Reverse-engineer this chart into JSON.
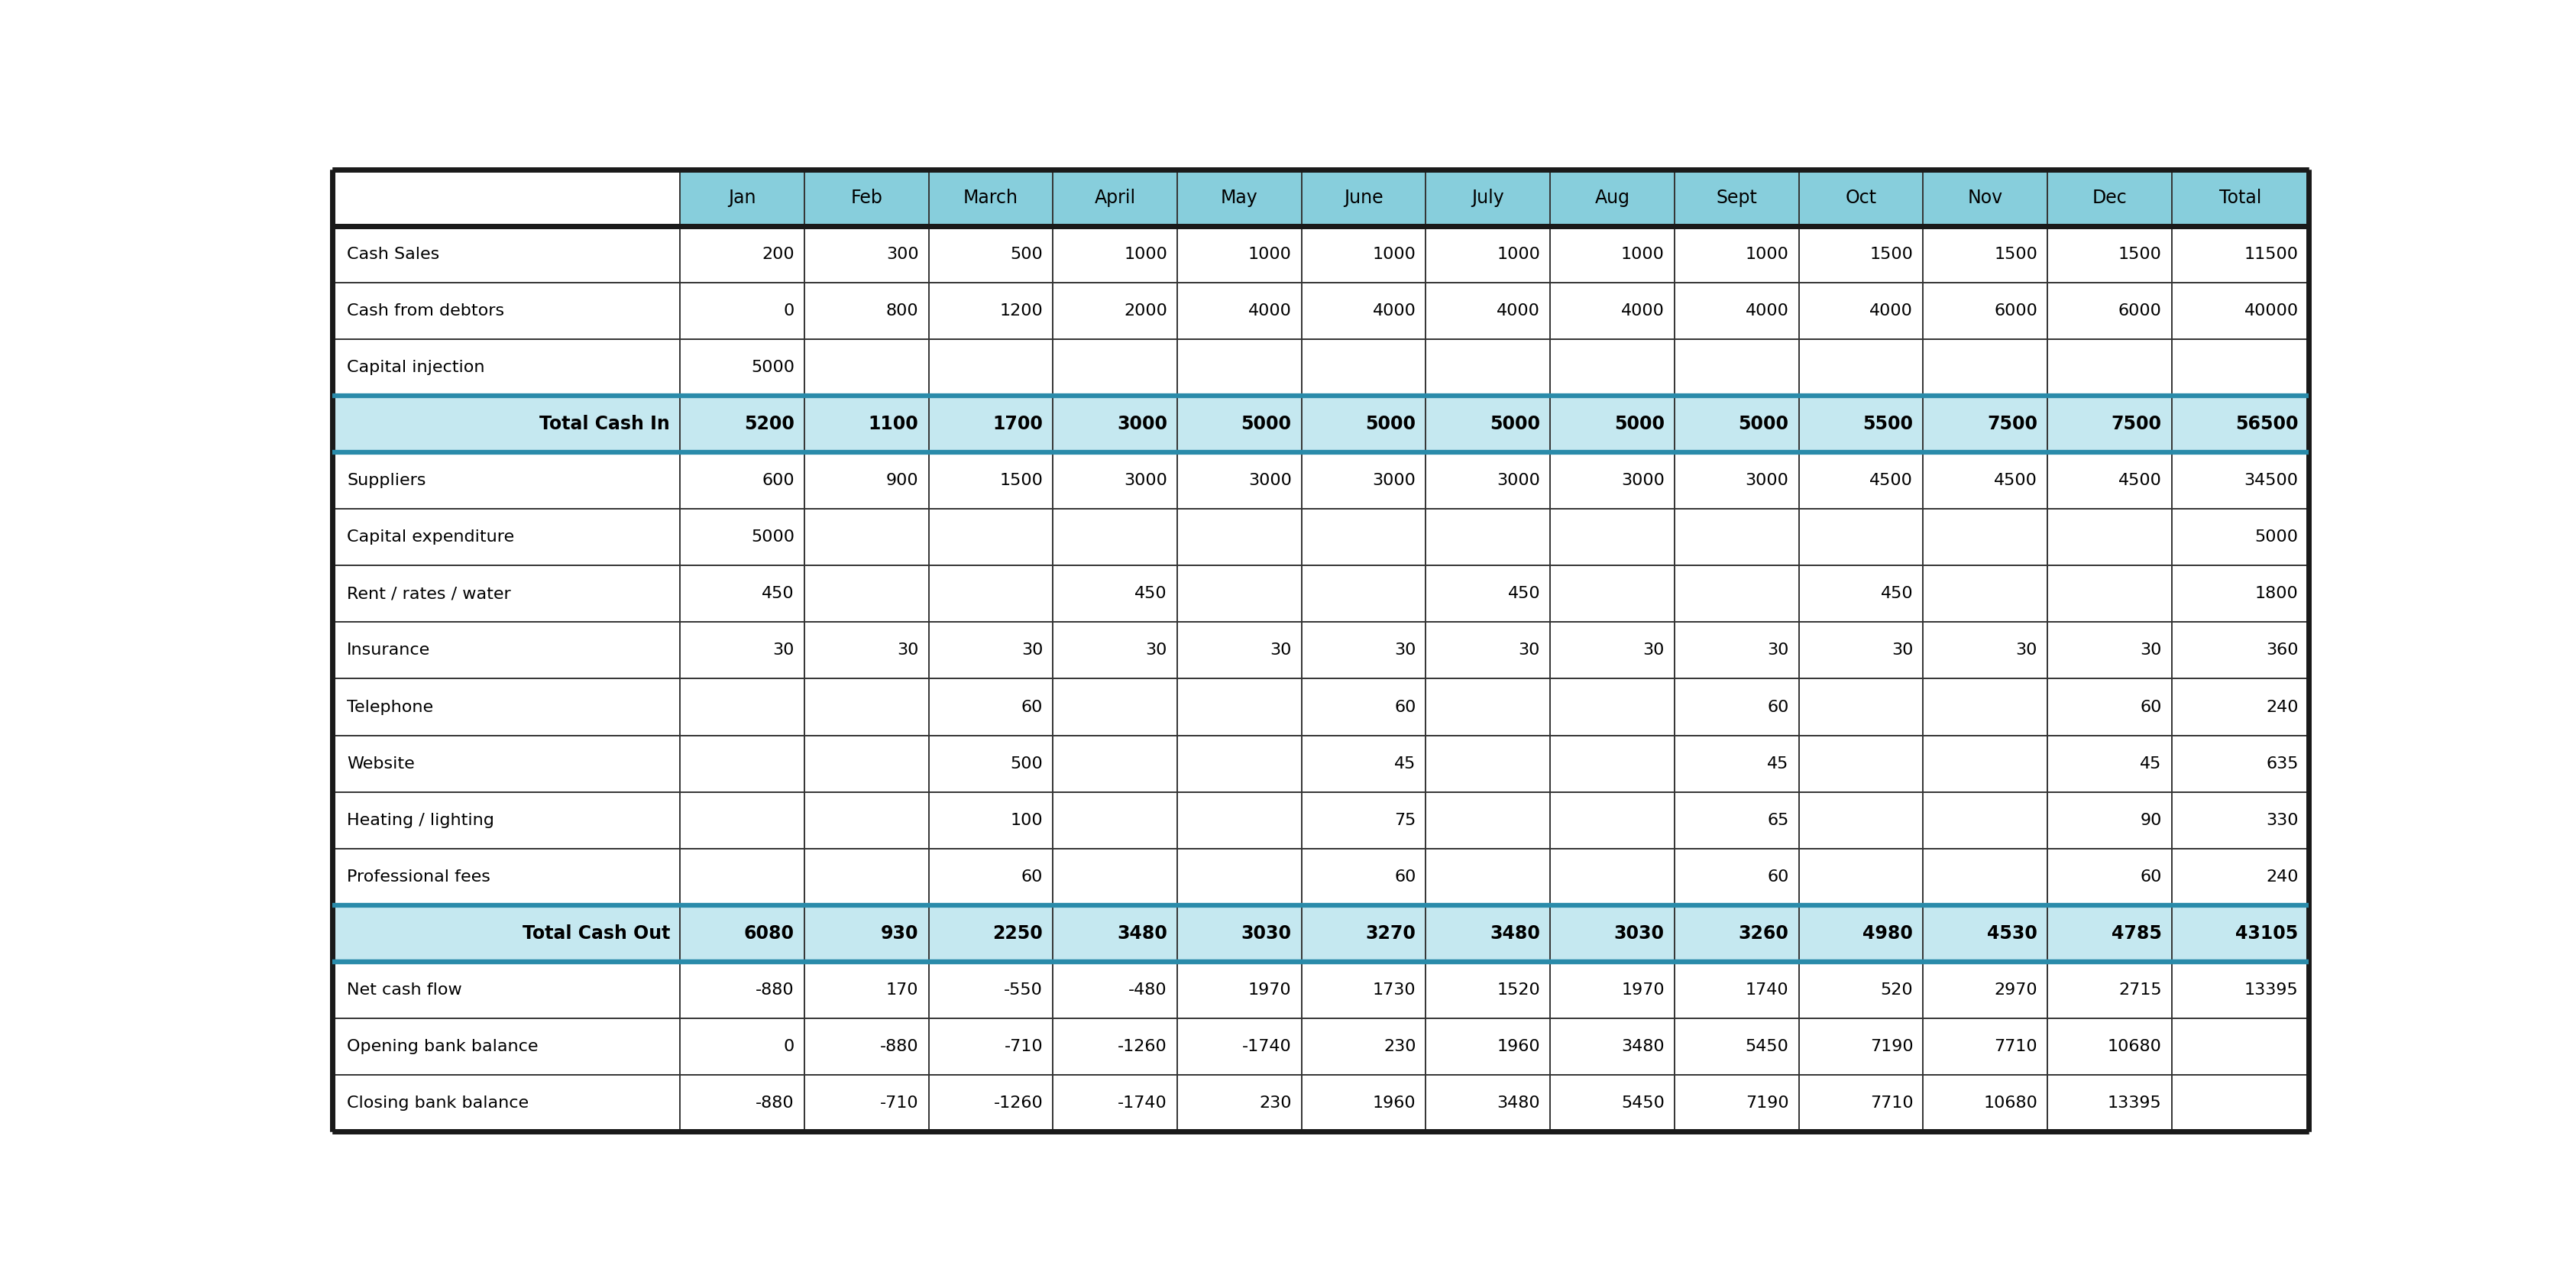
{
  "header_bg": "#87CEDC",
  "total_row_bg": "#C5E8F0",
  "normal_bg": "#FFFFFF",
  "columns": [
    "",
    "Jan",
    "Feb",
    "March",
    "April",
    "May",
    "June",
    "July",
    "Aug",
    "Sept",
    "Oct",
    "Nov",
    "Dec",
    "Total"
  ],
  "rows": [
    [
      "Cash Sales",
      "200",
      "300",
      "500",
      "1000",
      "1000",
      "1000",
      "1000",
      "1000",
      "1000",
      "1500",
      "1500",
      "1500",
      "11500"
    ],
    [
      "Cash from debtors",
      "0",
      "800",
      "1200",
      "2000",
      "4000",
      "4000",
      "4000",
      "4000",
      "4000",
      "4000",
      "6000",
      "6000",
      "40000"
    ],
    [
      "Capital injection",
      "5000",
      "",
      "",
      "",
      "",
      "",
      "",
      "",
      "",
      "",
      "",
      "",
      ""
    ],
    [
      "Total Cash In",
      "5200",
      "1100",
      "1700",
      "3000",
      "5000",
      "5000",
      "5000",
      "5000",
      "5000",
      "5500",
      "7500",
      "7500",
      "56500"
    ],
    [
      "Suppliers",
      "600",
      "900",
      "1500",
      "3000",
      "3000",
      "3000",
      "3000",
      "3000",
      "3000",
      "4500",
      "4500",
      "4500",
      "34500"
    ],
    [
      "Capital expenditure",
      "5000",
      "",
      "",
      "",
      "",
      "",
      "",
      "",
      "",
      "",
      "",
      "",
      "5000"
    ],
    [
      "Rent / rates / water",
      "450",
      "",
      "",
      "450",
      "",
      "",
      "450",
      "",
      "",
      "450",
      "",
      "",
      "1800"
    ],
    [
      "Insurance",
      "30",
      "30",
      "30",
      "30",
      "30",
      "30",
      "30",
      "30",
      "30",
      "30",
      "30",
      "30",
      "360"
    ],
    [
      "Telephone",
      "",
      "",
      "60",
      "",
      "",
      "60",
      "",
      "",
      "60",
      "",
      "",
      "60",
      "240"
    ],
    [
      "Website",
      "",
      "",
      "500",
      "",
      "",
      "45",
      "",
      "",
      "45",
      "",
      "",
      "45",
      "635"
    ],
    [
      "Heating / lighting",
      "",
      "",
      "100",
      "",
      "",
      "75",
      "",
      "",
      "65",
      "",
      "",
      "90",
      "330"
    ],
    [
      "Professional fees",
      "",
      "",
      "60",
      "",
      "",
      "60",
      "",
      "",
      "60",
      "",
      "",
      "60",
      "240"
    ],
    [
      "Total Cash Out",
      "6080",
      "930",
      "2250",
      "3480",
      "3030",
      "3270",
      "3480",
      "3030",
      "3260",
      "4980",
      "4530",
      "4785",
      "43105"
    ],
    [
      "Net cash flow",
      "-880",
      "170",
      "-550",
      "-480",
      "1970",
      "1730",
      "1520",
      "1970",
      "1740",
      "520",
      "2970",
      "2715",
      "13395"
    ],
    [
      "Opening bank balance",
      "0",
      "-880",
      "-710",
      "-1260",
      "-1740",
      "230",
      "1960",
      "3480",
      "5450",
      "7190",
      "7710",
      "10680",
      ""
    ],
    [
      "Closing bank balance",
      "-880",
      "-710",
      "-1260",
      "-1740",
      "230",
      "1960",
      "3480",
      "5450",
      "7190",
      "7710",
      "10680",
      "13395",
      ""
    ]
  ],
  "total_row_indices": [
    3,
    12
  ],
  "col_weights": [
    2.8,
    1.0,
    1.0,
    1.0,
    1.0,
    1.0,
    1.0,
    1.0,
    1.0,
    1.0,
    1.0,
    1.0,
    1.0,
    1.1
  ],
  "outer_border_color": "#1A1A1A",
  "inner_border_color": "#333333",
  "header_border_color": "#2A8BAA",
  "total_border_color": "#2A8BAA",
  "font_size": 16,
  "header_font_size": 17,
  "total_font_size": 17,
  "outer_lw": 5.0,
  "inner_lw": 1.2,
  "thick_lw": 3.5
}
